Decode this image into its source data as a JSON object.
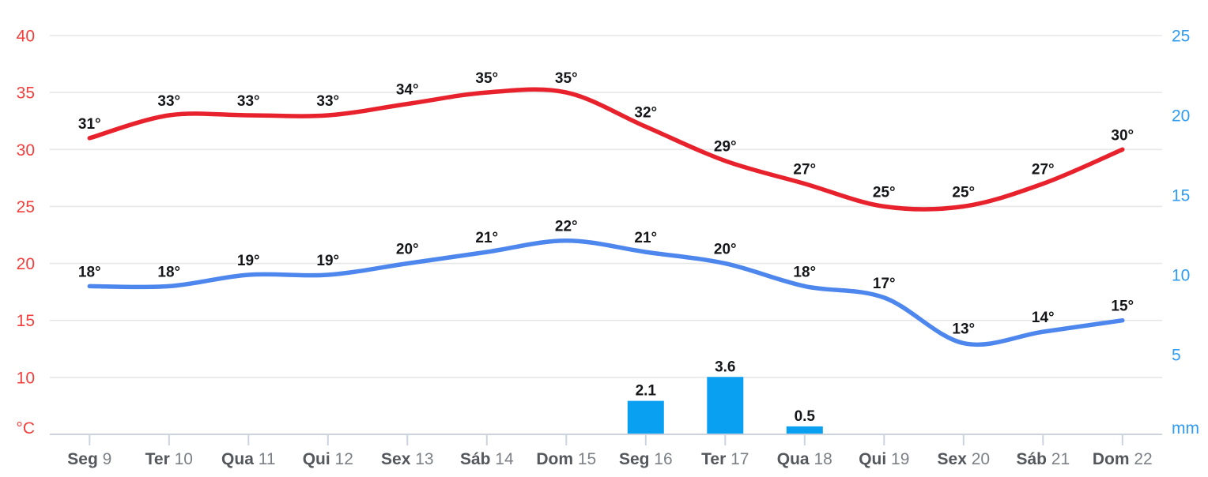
{
  "chart_data": {
    "type": "line+bar combo (weather forecast)",
    "categories": [
      {
        "name": "Seg",
        "num": "9"
      },
      {
        "name": "Ter",
        "num": "10"
      },
      {
        "name": "Qua",
        "num": "11"
      },
      {
        "name": "Qui",
        "num": "12"
      },
      {
        "name": "Sex",
        "num": "13"
      },
      {
        "name": "Sáb",
        "num": "14"
      },
      {
        "name": "Dom",
        "num": "15"
      },
      {
        "name": "Seg",
        "num": "16"
      },
      {
        "name": "Ter",
        "num": "17"
      },
      {
        "name": "Qua",
        "num": "18"
      },
      {
        "name": "Qui",
        "num": "19"
      },
      {
        "name": "Sex",
        "num": "20"
      },
      {
        "name": "Sáb",
        "num": "21"
      },
      {
        "name": "Dom",
        "num": "22"
      }
    ],
    "series": [
      {
        "name": "max_temp",
        "type": "line",
        "unit": "°C",
        "values": [
          31,
          33,
          33,
          33,
          34,
          35,
          35,
          32,
          29,
          27,
          25,
          25,
          27,
          30
        ],
        "label_suffix": "°"
      },
      {
        "name": "min_temp",
        "type": "line",
        "unit": "°C",
        "values": [
          18,
          18,
          19,
          19,
          20,
          21,
          22,
          21,
          20,
          18,
          17,
          13,
          14,
          15
        ],
        "label_suffix": "°"
      },
      {
        "name": "precipitation",
        "type": "bar",
        "unit": "mm",
        "values": [
          null,
          null,
          null,
          null,
          null,
          null,
          null,
          2.1,
          3.6,
          0.5,
          null,
          null,
          null,
          null
        ],
        "label_suffix": ""
      }
    ],
    "left_axis": {
      "unit": "°C",
      "ticks": [
        40,
        35,
        30,
        25,
        20,
        15,
        10
      ],
      "range": [
        5,
        40
      ]
    },
    "right_axis": {
      "unit": "mm",
      "ticks": [
        25,
        20,
        15,
        10,
        5
      ],
      "range": [
        0,
        25
      ]
    },
    "grid": true,
    "legend": "none"
  },
  "colors": {
    "max_temp_line": "#e8222d",
    "min_temp_line": "#4d86ec",
    "precip_bar": "#0aa0f2",
    "left_axis_text": "#f43e3c",
    "right_axis_text": "#2f9bf3",
    "grid_line": "#e7e7e7",
    "x_axis_line": "#ccd3de",
    "day_name_text": "#54575c",
    "day_number_text": "#7c8187",
    "value_label_text": "#141619"
  }
}
